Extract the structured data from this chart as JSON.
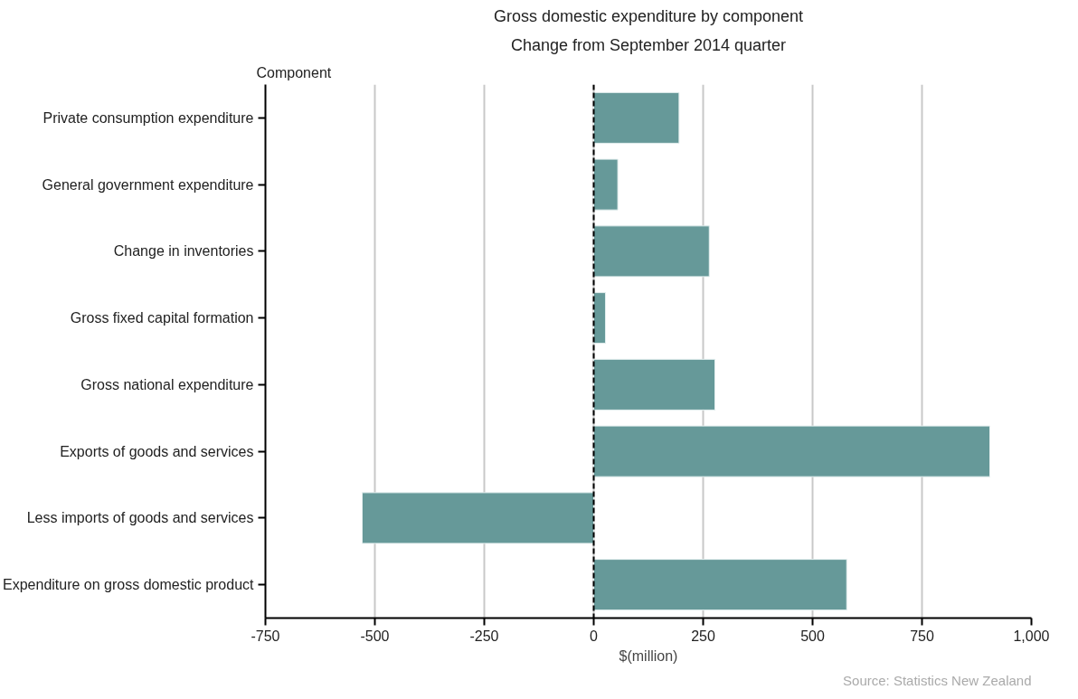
{
  "chart_data": {
    "type": "bar",
    "orientation": "horizontal",
    "title": "Gross domestic expenditure by component",
    "subtitle": "Change from September 2014 quarter",
    "ylabel": "Component",
    "xlabel": "$(million)",
    "categories": [
      "Private consumption expenditure",
      "General government expenditure",
      "Change in inventories",
      "Gross fixed capital formation",
      "Gross national expenditure",
      "Exports of goods and services",
      "Less imports of goods and services",
      "Expenditure on gross domestic product"
    ],
    "values": [
      195,
      55,
      264,
      27,
      277,
      905,
      -529,
      578
    ],
    "color": "#669999",
    "xlim": [
      -750,
      1000
    ],
    "xticks": [
      -750,
      -500,
      -250,
      0,
      250,
      500,
      750,
      {
        "value": 1000,
        "label": "1,000"
      }
    ],
    "grid": "x",
    "ref_lines": [
      {
        "axis": "x",
        "value": 0,
        "line_style": "dashed",
        "color": "#000000"
      }
    ],
    "annotations": [
      "Source: Statistics New Zealand"
    ]
  }
}
